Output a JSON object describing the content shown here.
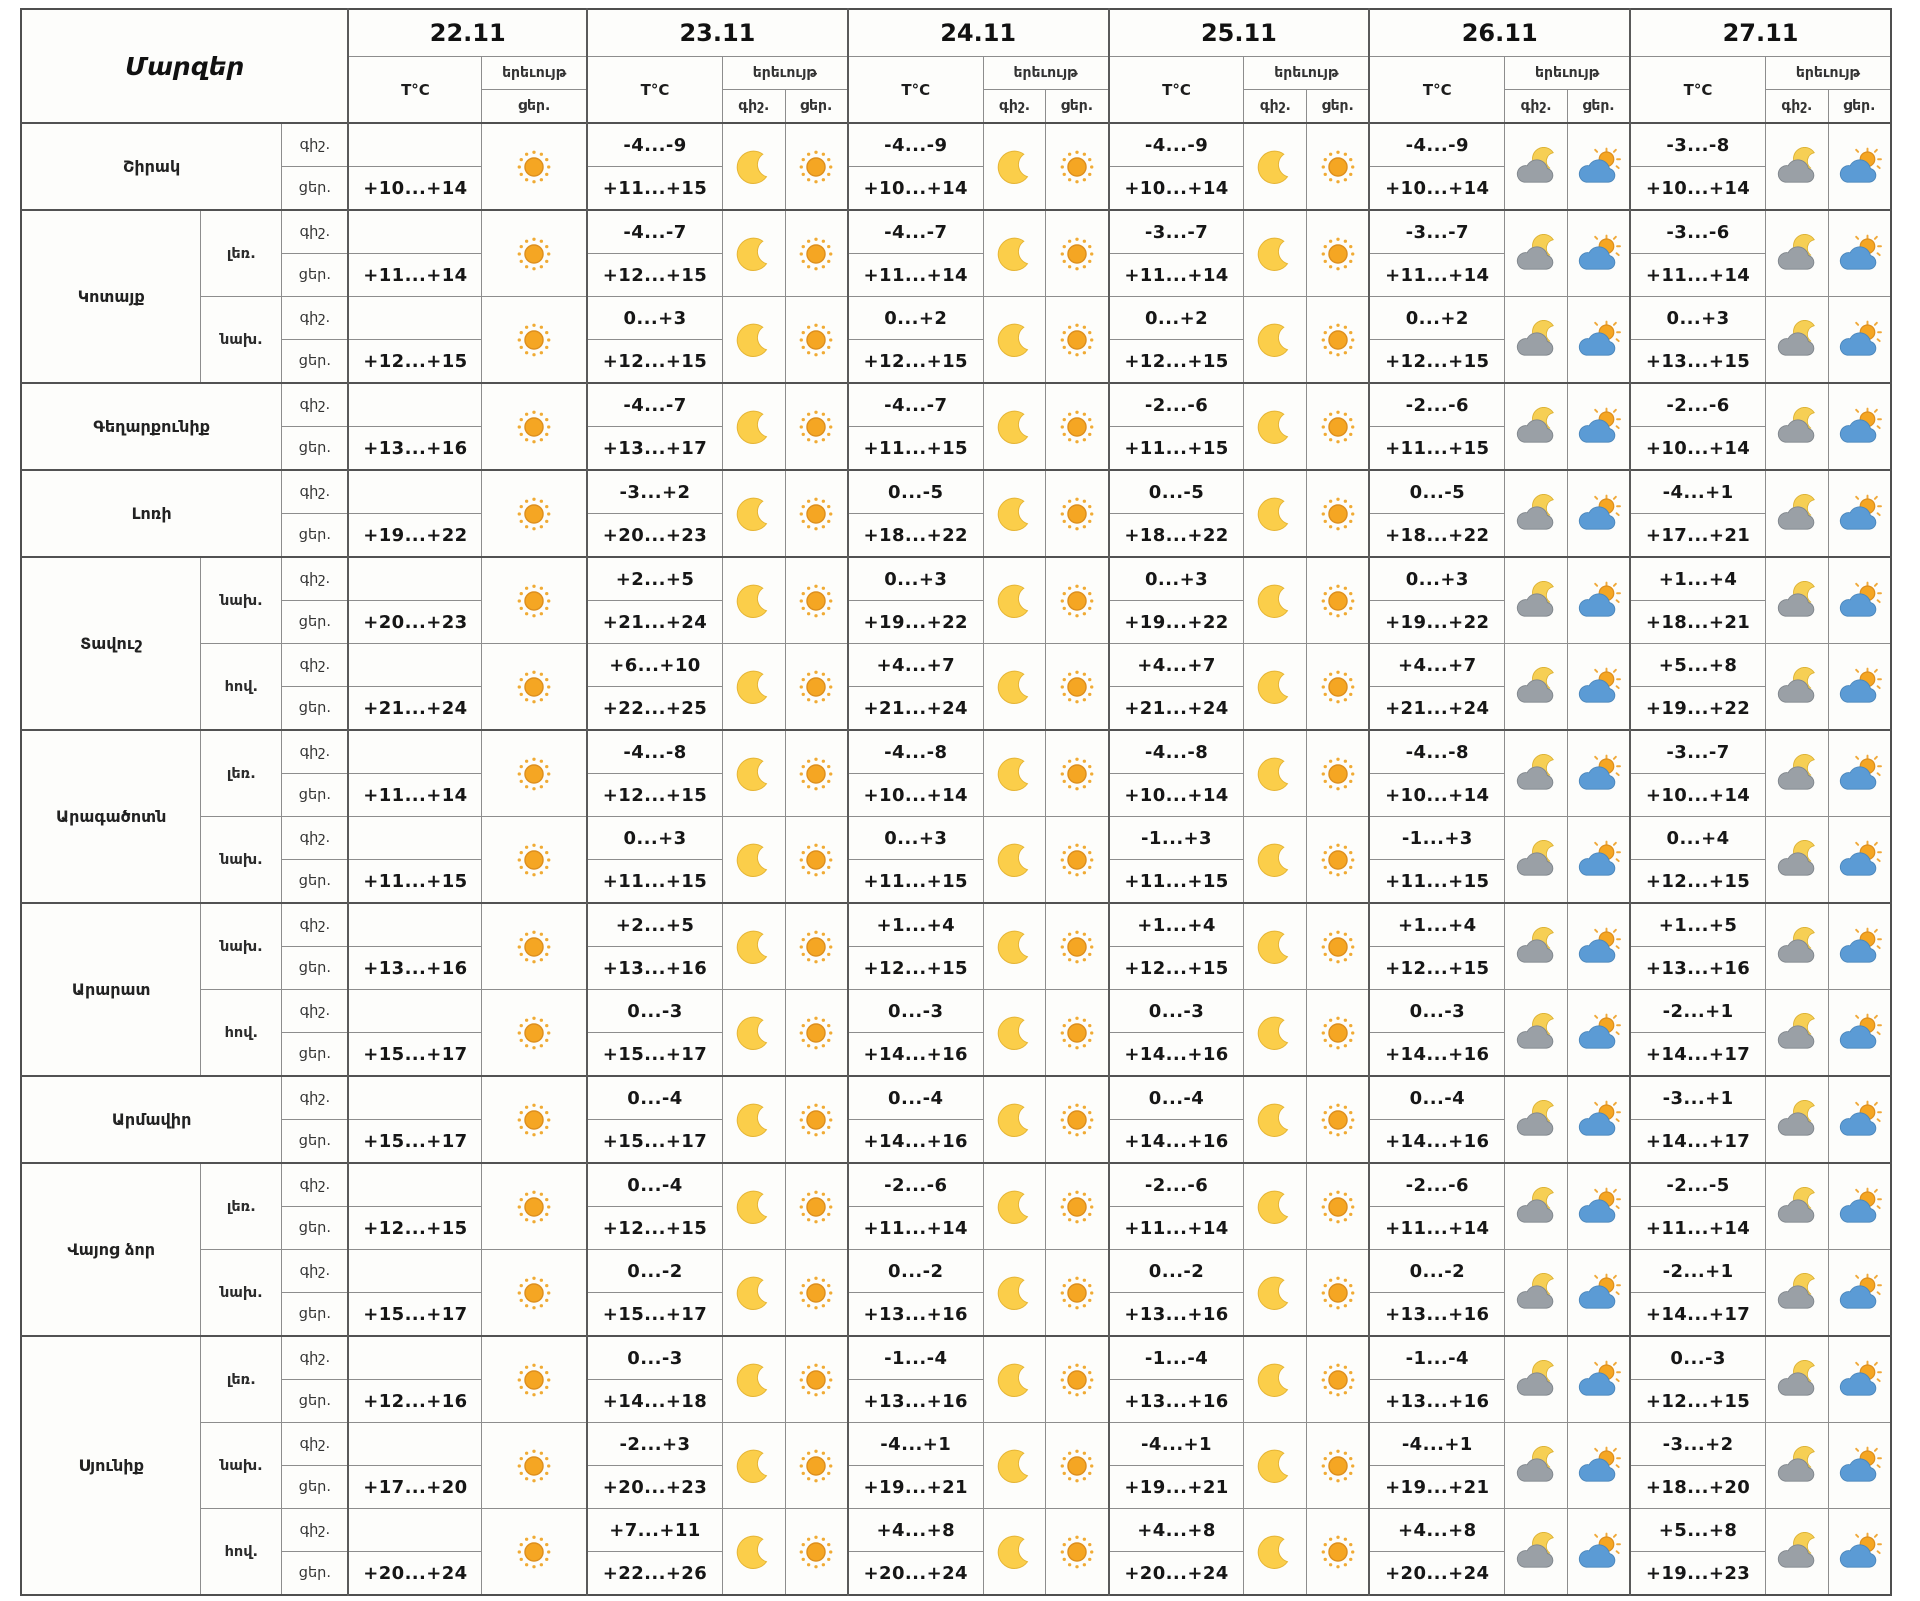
{
  "table": {
    "corner_label": "Մարզեր",
    "temp_header": "T°C",
    "phenomenon_header": "երեւույթ",
    "night_label": "գիշ.",
    "day_label": "ցեր.",
    "dates": [
      "22.11",
      "23.11",
      "24.11",
      "25.11",
      "26.11",
      "27.11"
    ],
    "date_columns": [
      {
        "date": "22.11",
        "night_icon": null,
        "day_icon": "sun"
      },
      {
        "date": "23.11",
        "night_icon": "moon",
        "day_icon": "sun"
      },
      {
        "date": "24.11",
        "night_icon": "moon",
        "day_icon": "sun"
      },
      {
        "date": "25.11",
        "night_icon": "moon",
        "day_icon": "sun"
      },
      {
        "date": "26.11",
        "night_icon": "cloud-moon",
        "day_icon": "cloud-sun"
      },
      {
        "date": "27.11",
        "night_icon": "cloud-moon",
        "day_icon": "cloud-sun"
      }
    ],
    "icon_colors": {
      "sun": "#f5a623",
      "moon": "#fbce4a",
      "cloud_night": "#9aa0a6",
      "cloud_day": "#5b9bd5"
    },
    "regions": [
      {
        "name": "Շիրակ",
        "subs": [
          {
            "label": "",
            "days": [
              {
                "day": "+10...+14"
              },
              {
                "night": "-4...-9",
                "day": "+11...+15"
              },
              {
                "night": "-4...-9",
                "day": "+10...+14"
              },
              {
                "night": "-4...-9",
                "day": "+10...+14"
              },
              {
                "night": "-4...-9",
                "day": "+10...+14"
              },
              {
                "night": "-3...-8",
                "day": "+10...+14"
              }
            ]
          }
        ]
      },
      {
        "name": "Կոտայք",
        "subs": [
          {
            "label": "լեռ.",
            "days": [
              {
                "day": "+11...+14"
              },
              {
                "night": "-4...-7",
                "day": "+12...+15"
              },
              {
                "night": "-4...-7",
                "day": "+11...+14"
              },
              {
                "night": "-3...-7",
                "day": "+11...+14"
              },
              {
                "night": "-3...-7",
                "day": "+11...+14"
              },
              {
                "night": "-3...-6",
                "day": "+11...+14"
              }
            ]
          },
          {
            "label": "նախ.",
            "days": [
              {
                "day": "+12...+15"
              },
              {
                "night": "0...+3",
                "day": "+12...+15"
              },
              {
                "night": "0...+2",
                "day": "+12...+15"
              },
              {
                "night": "0...+2",
                "day": "+12...+15"
              },
              {
                "night": "0...+2",
                "day": "+12...+15"
              },
              {
                "night": "0...+3",
                "day": "+13...+15"
              }
            ]
          }
        ]
      },
      {
        "name": "Գեղարքունիք",
        "subs": [
          {
            "label": "",
            "days": [
              {
                "day": "+13...+16"
              },
              {
                "night": "-4...-7",
                "day": "+13...+17"
              },
              {
                "night": "-4...-7",
                "day": "+11...+15"
              },
              {
                "night": "-2...-6",
                "day": "+11...+15"
              },
              {
                "night": "-2...-6",
                "day": "+11...+15"
              },
              {
                "night": "-2...-6",
                "day": "+10...+14"
              }
            ]
          }
        ]
      },
      {
        "name": "Լոռի",
        "subs": [
          {
            "label": "",
            "days": [
              {
                "day": "+19...+22"
              },
              {
                "night": "-3...+2",
                "day": "+20...+23"
              },
              {
                "night": "0...-5",
                "day": "+18...+22"
              },
              {
                "night": "0...-5",
                "day": "+18...+22"
              },
              {
                "night": "0...-5",
                "day": "+18...+22"
              },
              {
                "night": "-4...+1",
                "day": "+17...+21"
              }
            ]
          }
        ]
      },
      {
        "name": "Տավուշ",
        "subs": [
          {
            "label": "նախ.",
            "days": [
              {
                "day": "+20...+23"
              },
              {
                "night": "+2...+5",
                "day": "+21...+24"
              },
              {
                "night": "0...+3",
                "day": "+19...+22"
              },
              {
                "night": "0...+3",
                "day": "+19...+22"
              },
              {
                "night": "0...+3",
                "day": "+19...+22"
              },
              {
                "night": "+1...+4",
                "day": "+18...+21"
              }
            ]
          },
          {
            "label": "հով.",
            "days": [
              {
                "day": "+21...+24"
              },
              {
                "night": "+6...+10",
                "day": "+22...+25"
              },
              {
                "night": "+4...+7",
                "day": "+21...+24"
              },
              {
                "night": "+4...+7",
                "day": "+21...+24"
              },
              {
                "night": "+4...+7",
                "day": "+21...+24"
              },
              {
                "night": "+5...+8",
                "day": "+19...+22"
              }
            ]
          }
        ]
      },
      {
        "name": "Արագածոտն",
        "subs": [
          {
            "label": "լեռ.",
            "days": [
              {
                "day": "+11...+14"
              },
              {
                "night": "-4...-8",
                "day": "+12...+15"
              },
              {
                "night": "-4...-8",
                "day": "+10...+14"
              },
              {
                "night": "-4...-8",
                "day": "+10...+14"
              },
              {
                "night": "-4...-8",
                "day": "+10...+14"
              },
              {
                "night": "-3...-7",
                "day": "+10...+14"
              }
            ]
          },
          {
            "label": "նախ.",
            "days": [
              {
                "day": "+11...+15"
              },
              {
                "night": "0...+3",
                "day": "+11...+15"
              },
              {
                "night": "0...+3",
                "day": "+11...+15"
              },
              {
                "night": "-1...+3",
                "day": "+11...+15"
              },
              {
                "night": "-1...+3",
                "day": "+11...+15"
              },
              {
                "night": "0...+4",
                "day": "+12...+15"
              }
            ]
          }
        ]
      },
      {
        "name": "Արարատ",
        "subs": [
          {
            "label": "նախ.",
            "days": [
              {
                "day": "+13...+16"
              },
              {
                "night": "+2...+5",
                "day": "+13...+16"
              },
              {
                "night": "+1...+4",
                "day": "+12...+15"
              },
              {
                "night": "+1...+4",
                "day": "+12...+15"
              },
              {
                "night": "+1...+4",
                "day": "+12...+15"
              },
              {
                "night": "+1...+5",
                "day": "+13...+16"
              }
            ]
          },
          {
            "label": "հով.",
            "days": [
              {
                "day": "+15...+17"
              },
              {
                "night": "0...-3",
                "day": "+15...+17"
              },
              {
                "night": "0...-3",
                "day": "+14...+16"
              },
              {
                "night": "0...-3",
                "day": "+14...+16"
              },
              {
                "night": "0...-3",
                "day": "+14...+16"
              },
              {
                "night": "-2...+1",
                "day": "+14...+17"
              }
            ]
          }
        ]
      },
      {
        "name": "Արմավիր",
        "subs": [
          {
            "label": "",
            "days": [
              {
                "day": "+15...+17"
              },
              {
                "night": "0...-4",
                "day": "+15...+17"
              },
              {
                "night": "0...-4",
                "day": "+14...+16"
              },
              {
                "night": "0...-4",
                "day": "+14...+16"
              },
              {
                "night": "0...-4",
                "day": "+14...+16"
              },
              {
                "night": "-3...+1",
                "day": "+14...+17"
              }
            ]
          }
        ]
      },
      {
        "name": "Վայոց ձոր",
        "subs": [
          {
            "label": "լեռ.",
            "days": [
              {
                "day": "+12...+15"
              },
              {
                "night": "0...-4",
                "day": "+12...+15"
              },
              {
                "night": "-2...-6",
                "day": "+11...+14"
              },
              {
                "night": "-2...-6",
                "day": "+11...+14"
              },
              {
                "night": "-2...-6",
                "day": "+11...+14"
              },
              {
                "night": "-2...-5",
                "day": "+11...+14"
              }
            ]
          },
          {
            "label": "նախ.",
            "days": [
              {
                "day": "+15...+17"
              },
              {
                "night": "0...-2",
                "day": "+15...+17"
              },
              {
                "night": "0...-2",
                "day": "+13...+16"
              },
              {
                "night": "0...-2",
                "day": "+13...+16"
              },
              {
                "night": "0...-2",
                "day": "+13...+16"
              },
              {
                "night": "-2...+1",
                "day": "+14...+17"
              }
            ]
          }
        ]
      },
      {
        "name": "Սյունիք",
        "subs": [
          {
            "label": "լեռ.",
            "days": [
              {
                "day": "+12...+16"
              },
              {
                "night": "0...-3",
                "day": "+14...+18"
              },
              {
                "night": "-1...-4",
                "day": "+13...+16"
              },
              {
                "night": "-1...-4",
                "day": "+13...+16"
              },
              {
                "night": "-1...-4",
                "day": "+13...+16"
              },
              {
                "night": "0...-3",
                "day": "+12...+15"
              }
            ]
          },
          {
            "label": "նախ.",
            "days": [
              {
                "day": "+17...+20"
              },
              {
                "night": "-2...+3",
                "day": "+20...+23"
              },
              {
                "night": "-4...+1",
                "day": "+19...+21"
              },
              {
                "night": "-4...+1",
                "day": "+19...+21"
              },
              {
                "night": "-4...+1",
                "day": "+19...+21"
              },
              {
                "night": "-3...+2",
                "day": "+18...+20"
              }
            ]
          },
          {
            "label": "հով.",
            "days": [
              {
                "day": "+20...+24"
              },
              {
                "night": "+7...+11",
                "day": "+22...+26"
              },
              {
                "night": "+4...+8",
                "day": "+20...+24"
              },
              {
                "night": "+4...+8",
                "day": "+20...+24"
              },
              {
                "night": "+4...+8",
                "day": "+20...+24"
              },
              {
                "night": "+5...+8",
                "day": "+19...+23"
              }
            ]
          }
        ]
      }
    ]
  }
}
